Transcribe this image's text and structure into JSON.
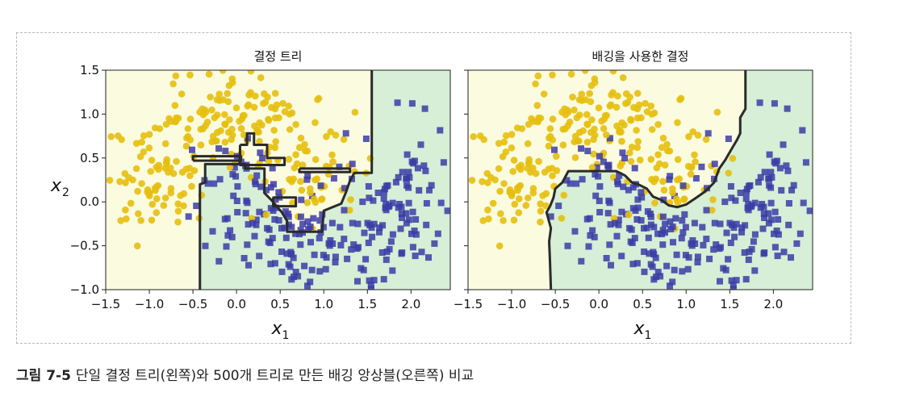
{
  "caption": {
    "label": "그림 7-5",
    "text": "단일 결정 트리(왼쪽)와 500개 트리로 만든 배깅 앙상블(오른쪽) 비교"
  },
  "colors": {
    "class0_fill": "#fbfbe0",
    "class1_fill": "#d6efd6",
    "class0_marker": "#e6bf0e",
    "class1_marker": "#3c3ca6",
    "boundary": "#2a2a2a"
  },
  "chart_data": [
    {
      "type": "scatter",
      "title": "결정 트리",
      "xlabel_main": "x",
      "xlabel_sub": "1",
      "ylabel_main": "x",
      "ylabel_sub": "2",
      "xlim": [
        -1.5,
        2.45
      ],
      "ylim": [
        -1.0,
        1.5
      ],
      "xticks": [
        "−1.5",
        "−1.0",
        "−0.5",
        "0.0",
        "0.5",
        "1.0",
        "1.5",
        "2.0"
      ],
      "xtick_values": [
        -1.5,
        -1.0,
        -0.5,
        0.0,
        0.5,
        1.0,
        1.5,
        2.0
      ],
      "yticks": [
        "−1.0",
        "−0.5",
        "0.0",
        "0.5",
        "1.0",
        "1.5"
      ],
      "ytick_values": [
        -1.0,
        -0.5,
        0.0,
        0.5,
        1.0,
        1.5
      ],
      "show_ylabel": true,
      "show_yticklabels": true,
      "series": [
        {
          "marker": "circle",
          "color": "#e6bf0e"
        },
        {
          "marker": "square",
          "color": "#3c3ca6"
        }
      ],
      "boundary": [
        [
          [
            -0.42,
            -1.0
          ],
          [
            -0.42,
            0.2
          ],
          [
            -0.36,
            0.22
          ],
          [
            -0.36,
            0.43
          ],
          [
            0.1,
            0.43
          ],
          [
            0.1,
            0.38
          ],
          [
            0.32,
            0.38
          ],
          [
            0.32,
            0.1
          ],
          [
            0.4,
            0.02
          ],
          [
            0.52,
            -0.12
          ],
          [
            0.58,
            -0.22
          ],
          [
            0.58,
            -0.34
          ],
          [
            0.98,
            -0.34
          ],
          [
            1.0,
            -0.1
          ],
          [
            1.2,
            -0.02
          ],
          [
            1.25,
            0.1
          ],
          [
            1.3,
            0.24
          ],
          [
            1.35,
            0.33
          ],
          [
            1.55,
            0.33
          ],
          [
            1.55,
            1.5
          ]
        ],
        [
          [
            -0.5,
            0.47
          ],
          [
            0.05,
            0.47
          ],
          [
            0.05,
            0.52
          ],
          [
            -0.5,
            0.52
          ],
          [
            -0.5,
            0.47
          ]
        ],
        [
          [
            0.04,
            0.65
          ],
          [
            0.12,
            0.65
          ],
          [
            0.12,
            0.78
          ],
          [
            0.2,
            0.78
          ],
          [
            0.2,
            0.65
          ],
          [
            0.35,
            0.65
          ],
          [
            0.35,
            0.5
          ],
          [
            0.55,
            0.5
          ],
          [
            0.55,
            0.42
          ],
          [
            0.04,
            0.42
          ],
          [
            0.04,
            0.65
          ]
        ],
        [
          [
            0.72,
            0.38
          ],
          [
            1.3,
            0.38
          ],
          [
            1.3,
            0.34
          ],
          [
            0.72,
            0.34
          ],
          [
            0.72,
            0.38
          ]
        ],
        [
          [
            0.42,
            0.05
          ],
          [
            0.42,
            -0.05
          ],
          [
            0.68,
            -0.05
          ],
          [
            0.68,
            0.05
          ],
          [
            0.42,
            0.05
          ]
        ]
      ]
    },
    {
      "type": "scatter",
      "title": "배깅을 사용한 결정",
      "xlabel_main": "x",
      "xlabel_sub": "1",
      "xlim": [
        -1.5,
        2.45
      ],
      "ylim": [
        -1.0,
        1.5
      ],
      "xticks": [
        "−1.5",
        "−1.0",
        "−0.5",
        "0.0",
        "0.5",
        "1.0",
        "1.5",
        "2.0"
      ],
      "xtick_values": [
        -1.5,
        -1.0,
        -0.5,
        0.0,
        0.5,
        1.0,
        1.5,
        2.0
      ],
      "ytick_values": [
        -1.0,
        -0.5,
        0.0,
        0.5,
        1.0,
        1.5
      ],
      "show_ylabel": false,
      "show_yticklabels": false,
      "series": [
        {
          "marker": "circle",
          "color": "#e6bf0e"
        },
        {
          "marker": "square",
          "color": "#3c3ca6"
        }
      ],
      "boundary": [
        [
          [
            -0.55,
            -1.0
          ],
          [
            -0.56,
            -0.7
          ],
          [
            -0.57,
            -0.45
          ],
          [
            -0.55,
            -0.3
          ],
          [
            -0.6,
            -0.12
          ],
          [
            -0.56,
            -0.05
          ],
          [
            -0.52,
            0.05
          ],
          [
            -0.5,
            0.15
          ],
          [
            -0.42,
            0.22
          ],
          [
            -0.35,
            0.35
          ],
          [
            -0.15,
            0.35
          ],
          [
            0.2,
            0.35
          ],
          [
            0.3,
            0.3
          ],
          [
            0.38,
            0.22
          ],
          [
            0.45,
            0.2
          ],
          [
            0.55,
            0.15
          ],
          [
            0.62,
            0.06
          ],
          [
            0.72,
            0.02
          ],
          [
            0.8,
            -0.04
          ],
          [
            0.9,
            -0.06
          ],
          [
            1.0,
            -0.03
          ],
          [
            1.12,
            0.05
          ],
          [
            1.22,
            0.12
          ],
          [
            1.32,
            0.22
          ],
          [
            1.38,
            0.38
          ],
          [
            1.45,
            0.48
          ],
          [
            1.52,
            0.6
          ],
          [
            1.58,
            0.7
          ],
          [
            1.62,
            0.78
          ],
          [
            1.62,
            0.96
          ],
          [
            1.68,
            1.06
          ],
          [
            1.68,
            1.5
          ]
        ]
      ]
    }
  ]
}
